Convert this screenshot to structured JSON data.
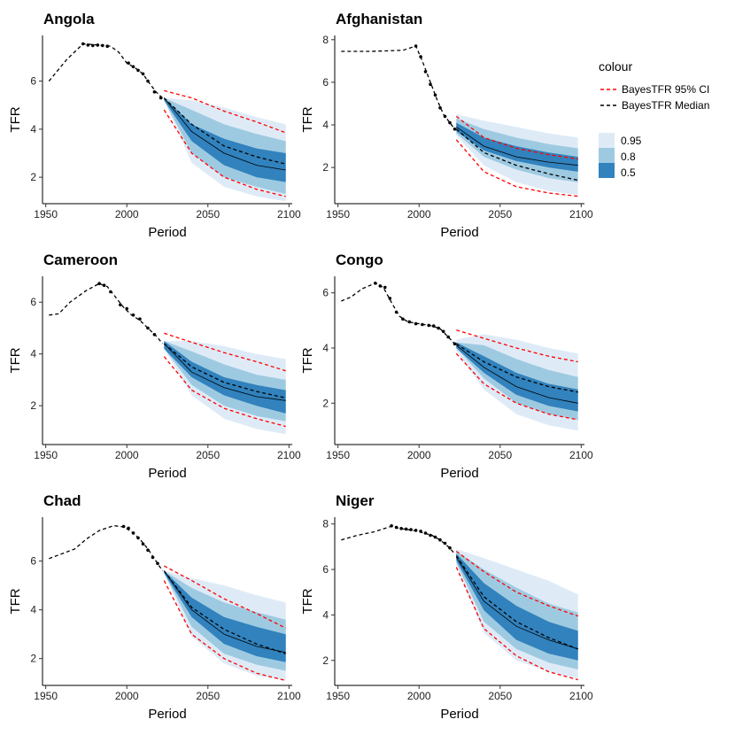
{
  "chart_data": {
    "type": "line",
    "xlabel": "Period",
    "ylabel": "TFR",
    "xlim": [
      1948,
      2102
    ],
    "xticks": [
      1950,
      2000,
      2050,
      2100
    ],
    "legend": {
      "position": "right",
      "colour_title": "colour",
      "line_items": [
        {
          "label": "BayesTFR 95% CI",
          "color": "#ff0000",
          "dash": "dashed"
        },
        {
          "label": "BayesTFR Median",
          "color": "#000000",
          "dash": "dashed"
        }
      ],
      "fill_items": [
        {
          "label": "0.95",
          "color": "#deebf7"
        },
        {
          "label": "0.8",
          "color": "#9ecae1"
        },
        {
          "label": "0.5",
          "color": "#3182bd"
        }
      ]
    },
    "projection_x": [
      2023,
      2040,
      2060,
      2080,
      2098
    ],
    "panels": [
      {
        "title": "Angola",
        "ylim": [
          0.9,
          7.9
        ],
        "yticks": [
          2,
          4,
          6
        ],
        "history": [
          [
            1952,
            6.0
          ],
          [
            1963,
            6.9
          ],
          [
            1973,
            7.55
          ],
          [
            1983,
            7.5
          ],
          [
            1990,
            7.45
          ],
          [
            1995,
            7.2
          ],
          [
            2000,
            6.75
          ],
          [
            2005,
            6.55
          ],
          [
            2010,
            6.3
          ],
          [
            2013,
            6.0
          ],
          [
            2018,
            5.55
          ],
          [
            2022,
            5.3
          ]
        ],
        "obs": [
          [
            1973,
            7.55
          ],
          [
            1976,
            7.5
          ],
          [
            1979,
            7.48
          ],
          [
            1982,
            7.5
          ],
          [
            1985,
            7.48
          ],
          [
            1988,
            7.45
          ],
          [
            2001,
            6.75
          ],
          [
            2004,
            6.6
          ],
          [
            2007,
            6.45
          ],
          [
            2010,
            6.3
          ],
          [
            2013,
            6.0
          ],
          [
            2017,
            5.55
          ],
          [
            2021,
            5.3
          ]
        ],
        "band95": {
          "lo": [
            5.2,
            2.6,
            1.6,
            1.2,
            1.0
          ],
          "hi": [
            5.3,
            5.2,
            4.9,
            4.5,
            4.2
          ]
        },
        "band80": {
          "lo": [
            5.2,
            3.0,
            2.0,
            1.6,
            1.3
          ],
          "hi": [
            5.3,
            4.8,
            4.2,
            3.8,
            3.5
          ]
        },
        "band50": {
          "lo": [
            5.2,
            3.5,
            2.5,
            2.0,
            1.8
          ],
          "hi": [
            5.3,
            4.2,
            3.6,
            3.2,
            3.0
          ]
        },
        "median": [
          5.3,
          3.9,
          3.0,
          2.5,
          2.3
        ],
        "bayes_median": [
          5.3,
          4.2,
          3.3,
          2.85,
          2.55
        ],
        "bayes_lo": [
          4.8,
          3.0,
          2.0,
          1.5,
          1.2
        ],
        "bayes_hi": [
          5.6,
          5.3,
          4.75,
          4.3,
          3.85
        ]
      },
      {
        "title": "Afghanistan",
        "ylim": [
          0.3,
          8.2
        ],
        "yticks": [
          2,
          4,
          6,
          8
        ],
        "history": [
          [
            1952,
            7.45
          ],
          [
            1970,
            7.45
          ],
          [
            1990,
            7.5
          ],
          [
            1998,
            7.7
          ],
          [
            2002,
            7.0
          ],
          [
            2005,
            6.4
          ],
          [
            2008,
            5.8
          ],
          [
            2011,
            5.2
          ],
          [
            2015,
            4.5
          ],
          [
            2019,
            4.1
          ],
          [
            2022,
            3.8
          ]
        ],
        "obs": [
          [
            1998,
            7.7
          ],
          [
            2001,
            7.2
          ],
          [
            2004,
            6.5
          ],
          [
            2007,
            5.9
          ],
          [
            2010,
            5.4
          ],
          [
            2013,
            4.8
          ],
          [
            2016,
            4.4
          ],
          [
            2019,
            4.1
          ],
          [
            2022,
            3.8
          ]
        ],
        "band95": {
          "lo": [
            3.5,
            2.1,
            1.3,
            0.9,
            0.7
          ],
          "hi": [
            4.5,
            4.2,
            3.9,
            3.6,
            3.4
          ]
        },
        "band80": {
          "lo": [
            3.6,
            2.5,
            1.9,
            1.5,
            1.3
          ],
          "hi": [
            4.3,
            3.8,
            3.4,
            3.1,
            2.9
          ]
        },
        "band50": {
          "lo": [
            3.7,
            2.8,
            2.3,
            2.0,
            1.8
          ],
          "hi": [
            4.1,
            3.4,
            3.0,
            2.7,
            2.5
          ]
        },
        "median": [
          3.9,
          3.0,
          2.5,
          2.25,
          2.1
        ],
        "bayes_median": [
          3.8,
          2.7,
          2.1,
          1.7,
          1.4
        ],
        "bayes_lo": [
          3.3,
          1.8,
          1.1,
          0.8,
          0.65
        ],
        "bayes_hi": [
          4.4,
          3.4,
          2.9,
          2.6,
          2.4
        ]
      },
      {
        "title": "Cameroon",
        "ylim": [
          0.5,
          7.0
        ],
        "yticks": [
          2,
          4,
          6
        ],
        "history": [
          [
            1952,
            5.5
          ],
          [
            1958,
            5.55
          ],
          [
            1965,
            6.0
          ],
          [
            1975,
            6.45
          ],
          [
            1983,
            6.72
          ],
          [
            1988,
            6.6
          ],
          [
            1993,
            6.2
          ],
          [
            1998,
            5.8
          ],
          [
            2003,
            5.5
          ],
          [
            2008,
            5.3
          ],
          [
            2013,
            5.0
          ],
          [
            2018,
            4.7
          ],
          [
            2022,
            4.4
          ]
        ],
        "obs": [
          [
            1983,
            6.72
          ],
          [
            1986,
            6.65
          ],
          [
            1990,
            6.4
          ],
          [
            1996,
            5.9
          ],
          [
            2000,
            5.75
          ],
          [
            2004,
            5.5
          ],
          [
            2008,
            5.35
          ],
          [
            2013,
            5.0
          ],
          [
            2017,
            4.75
          ]
        ],
        "band95": {
          "lo": [
            4.2,
            2.4,
            1.5,
            1.1,
            0.9
          ],
          "hi": [
            4.5,
            4.5,
            4.3,
            4.0,
            3.8
          ]
        },
        "band80": {
          "lo": [
            4.2,
            2.8,
            2.0,
            1.6,
            1.4
          ],
          "hi": [
            4.5,
            4.1,
            3.6,
            3.2,
            3.0
          ]
        },
        "band50": {
          "lo": [
            4.2,
            3.1,
            2.4,
            2.0,
            1.7
          ],
          "hi": [
            4.5,
            3.7,
            3.1,
            2.8,
            2.6
          ]
        },
        "median": [
          4.4,
          3.3,
          2.7,
          2.35,
          2.2
        ],
        "bayes_median": [
          4.4,
          3.5,
          2.9,
          2.55,
          2.3
        ],
        "bayes_lo": [
          3.9,
          2.6,
          1.9,
          1.5,
          1.2
        ],
        "bayes_hi": [
          4.8,
          4.45,
          4.05,
          3.7,
          3.35
        ]
      },
      {
        "title": "Congo",
        "ylim": [
          0.5,
          6.6
        ],
        "yticks": [
          2,
          4,
          6
        ],
        "history": [
          [
            1952,
            5.7
          ],
          [
            1958,
            5.85
          ],
          [
            1965,
            6.15
          ],
          [
            1973,
            6.35
          ],
          [
            1978,
            6.2
          ],
          [
            1983,
            5.65
          ],
          [
            1988,
            5.15
          ],
          [
            1993,
            4.95
          ],
          [
            1998,
            4.9
          ],
          [
            2003,
            4.85
          ],
          [
            2008,
            4.8
          ],
          [
            2013,
            4.7
          ],
          [
            2018,
            4.4
          ],
          [
            2022,
            4.15
          ]
        ],
        "obs": [
          [
            1973,
            6.35
          ],
          [
            1976,
            6.25
          ],
          [
            1979,
            6.2
          ],
          [
            1982,
            5.8
          ],
          [
            1986,
            5.3
          ],
          [
            1990,
            5.05
          ],
          [
            1994,
            4.95
          ],
          [
            1998,
            4.88
          ],
          [
            2002,
            4.85
          ],
          [
            2006,
            4.82
          ],
          [
            2009,
            4.8
          ],
          [
            2012,
            4.72
          ],
          [
            2015,
            4.6
          ],
          [
            2018,
            4.4
          ],
          [
            2022,
            4.15
          ]
        ],
        "band95": {
          "lo": [
            3.9,
            2.5,
            1.6,
            1.2,
            1.0
          ],
          "hi": [
            4.3,
            4.5,
            4.3,
            4.0,
            3.8
          ]
        },
        "band80": {
          "lo": [
            4.0,
            2.9,
            2.0,
            1.6,
            1.4
          ],
          "hi": [
            4.2,
            4.1,
            3.6,
            3.2,
            2.95
          ]
        },
        "band50": {
          "lo": [
            4.0,
            3.1,
            2.3,
            1.9,
            1.7
          ],
          "hi": [
            4.2,
            3.7,
            3.1,
            2.7,
            2.5
          ]
        },
        "median": [
          4.1,
          3.3,
          2.6,
          2.2,
          2.0
        ],
        "bayes_median": [
          4.15,
          3.5,
          2.95,
          2.6,
          2.4
        ],
        "bayes_lo": [
          3.8,
          2.7,
          2.0,
          1.6,
          1.4
        ],
        "bayes_hi": [
          4.65,
          4.35,
          4.0,
          3.7,
          3.5
        ]
      },
      {
        "title": "Chad",
        "ylim": [
          0.9,
          7.8
        ],
        "yticks": [
          2,
          4,
          6
        ],
        "history": [
          [
            1952,
            6.1
          ],
          [
            1960,
            6.3
          ],
          [
            1968,
            6.5
          ],
          [
            1975,
            6.9
          ],
          [
            1983,
            7.25
          ],
          [
            1992,
            7.45
          ],
          [
            1998,
            7.4
          ],
          [
            2003,
            7.2
          ],
          [
            2008,
            6.9
          ],
          [
            2013,
            6.5
          ],
          [
            2018,
            6.0
          ],
          [
            2022,
            5.6
          ]
        ],
        "obs": [
          [
            1998,
            7.42
          ],
          [
            2001,
            7.35
          ],
          [
            2004,
            7.15
          ],
          [
            2007,
            6.95
          ],
          [
            2010,
            6.7
          ],
          [
            2013,
            6.45
          ],
          [
            2016,
            6.15
          ],
          [
            2019,
            5.9
          ]
        ],
        "band95": {
          "lo": [
            5.5,
            2.9,
            1.8,
            1.3,
            1.1
          ],
          "hi": [
            5.6,
            5.3,
            5.0,
            4.6,
            4.3
          ]
        },
        "band80": {
          "lo": [
            5.5,
            3.3,
            2.2,
            1.75,
            1.5
          ],
          "hi": [
            5.6,
            4.9,
            4.3,
            3.9,
            3.6
          ]
        },
        "band50": {
          "lo": [
            5.5,
            3.7,
            2.6,
            2.1,
            1.85
          ],
          "hi": [
            5.6,
            4.5,
            3.7,
            3.3,
            3.0
          ]
        },
        "median": [
          5.6,
          4.0,
          3.0,
          2.5,
          2.25
        ],
        "bayes_median": [
          5.6,
          4.1,
          3.2,
          2.6,
          2.2
        ],
        "bayes_lo": [
          5.2,
          3.0,
          2.0,
          1.4,
          1.1
        ],
        "bayes_hi": [
          5.8,
          5.2,
          4.45,
          3.85,
          3.25
        ]
      },
      {
        "title": "Niger",
        "ylim": [
          0.9,
          8.3
        ],
        "yticks": [
          2,
          4,
          6,
          8
        ],
        "history": [
          [
            1952,
            7.3
          ],
          [
            1962,
            7.5
          ],
          [
            1972,
            7.65
          ],
          [
            1983,
            7.9
          ],
          [
            1988,
            7.8
          ],
          [
            1993,
            7.75
          ],
          [
            1998,
            7.7
          ],
          [
            2003,
            7.6
          ],
          [
            2008,
            7.5
          ],
          [
            2013,
            7.3
          ],
          [
            2018,
            7.0
          ],
          [
            2022,
            6.7
          ]
        ],
        "obs": [
          [
            1983,
            7.92
          ],
          [
            1986,
            7.85
          ],
          [
            1989,
            7.8
          ],
          [
            1992,
            7.78
          ],
          [
            1995,
            7.75
          ],
          [
            1998,
            7.72
          ],
          [
            2001,
            7.68
          ],
          [
            2004,
            7.6
          ],
          [
            2007,
            7.5
          ],
          [
            2010,
            7.42
          ],
          [
            2013,
            7.3
          ],
          [
            2016,
            7.15
          ],
          [
            2019,
            6.95
          ]
        ],
        "band95": {
          "lo": [
            6.2,
            3.2,
            2.0,
            1.5,
            1.2
          ],
          "hi": [
            6.9,
            6.5,
            6.0,
            5.5,
            4.9
          ]
        },
        "band80": {
          "lo": [
            6.3,
            3.7,
            2.5,
            1.9,
            1.6
          ],
          "hi": [
            6.8,
            6.0,
            5.2,
            4.5,
            4.1
          ]
        },
        "band50": {
          "lo": [
            6.4,
            4.2,
            2.9,
            2.3,
            2.0
          ],
          "hi": [
            6.7,
            5.4,
            4.4,
            3.7,
            3.3
          ]
        },
        "median": [
          6.55,
          4.6,
          3.5,
          2.9,
          2.5
        ],
        "bayes_median": [
          6.6,
          4.8,
          3.7,
          3.0,
          2.5
        ],
        "bayes_lo": [
          6.1,
          3.4,
          2.2,
          1.5,
          1.15
        ],
        "bayes_hi": [
          6.8,
          5.9,
          5.0,
          4.4,
          3.95
        ]
      }
    ]
  }
}
